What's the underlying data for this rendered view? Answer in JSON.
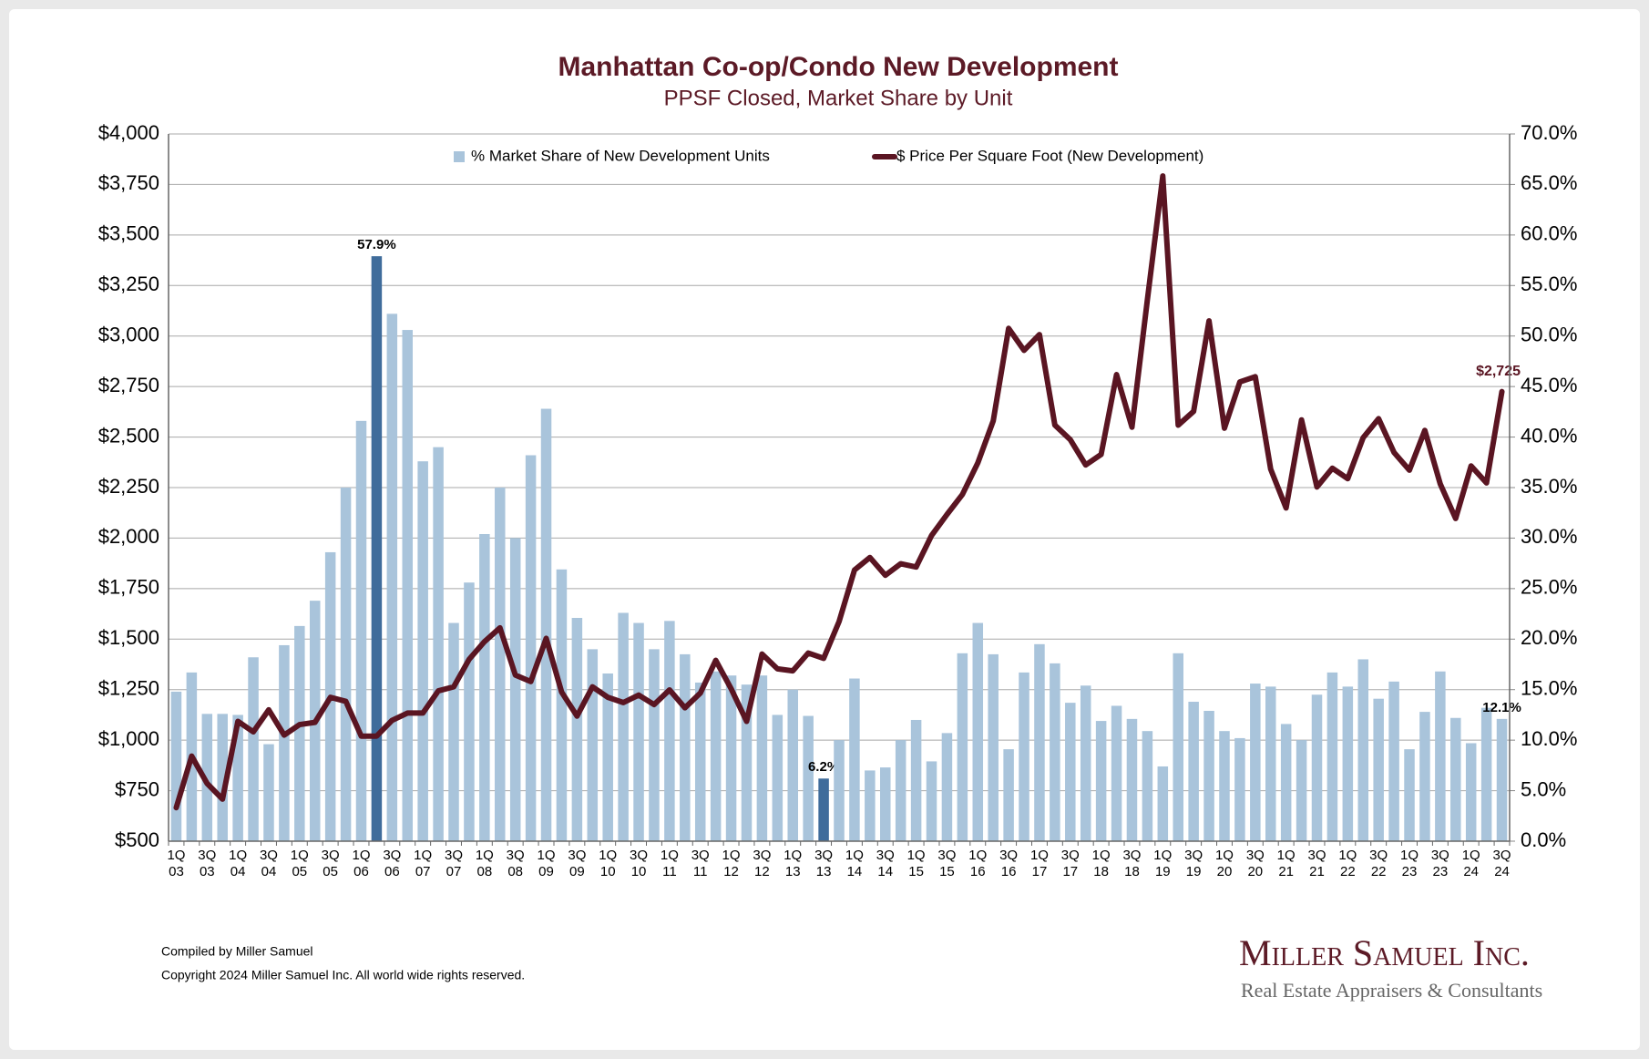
{
  "chart_data": {
    "type": "combo",
    "title": "Manhattan Co-op/Condo New Development",
    "subtitle": "PPSF Closed, Market Share by Unit",
    "categories": [
      "1Q 03",
      null,
      "3Q 03",
      null,
      "1Q 04",
      null,
      "3Q 04",
      null,
      "1Q 05",
      null,
      "3Q 05",
      null,
      "1Q 06",
      null,
      "3Q 06",
      null,
      "1Q 07",
      null,
      "3Q 07",
      null,
      "1Q 08",
      null,
      "3Q 08",
      null,
      "1Q 09",
      null,
      "3Q 09",
      null,
      "1Q 10",
      null,
      "3Q 10",
      null,
      "1Q 11",
      null,
      "3Q 11",
      null,
      "1Q 12",
      null,
      "3Q 12",
      null,
      "1Q 13",
      null,
      "3Q 13",
      null,
      "1Q 14",
      null,
      "3Q 14",
      null,
      "1Q 15",
      null,
      "3Q 15",
      null,
      "1Q 16",
      null,
      "3Q 16",
      null,
      "1Q 17",
      null,
      "3Q 17",
      null,
      "1Q 18",
      null,
      "3Q 18",
      null,
      "1Q 19",
      null,
      "3Q 19",
      null,
      "1Q 20",
      null,
      "3Q 20",
      null,
      "1Q 21",
      null,
      "3Q 21",
      null,
      "1Q 22",
      null,
      "3Q 22",
      null,
      "1Q 23",
      null,
      "3Q 23",
      null,
      "1Q 24",
      null,
      "3Q 24"
    ],
    "series": [
      {
        "name": "% Market Share of New Development Units",
        "type": "bar",
        "axis": "y2",
        "color": "#a9c4db",
        "colors": [
          "#a9c4db",
          "#a9c4db",
          "#a9c4db",
          "#a9c4db",
          "#a9c4db",
          "#a9c4db",
          "#a9c4db",
          "#a9c4db",
          "#a9c4db",
          "#a9c4db",
          "#a9c4db",
          "#a9c4db",
          "#a9c4db",
          "#3f6c9b",
          "#a9c4db",
          "#a9c4db",
          "#a9c4db",
          "#a9c4db",
          "#a9c4db",
          "#a9c4db",
          "#a9c4db",
          "#a9c4db",
          "#a9c4db",
          "#a9c4db",
          "#a9c4db",
          "#a9c4db",
          "#a9c4db",
          "#a9c4db",
          "#a9c4db",
          "#a9c4db",
          "#a9c4db",
          "#a9c4db",
          "#a9c4db",
          "#a9c4db",
          "#a9c4db",
          "#a9c4db",
          "#a9c4db",
          "#a9c4db",
          "#a9c4db",
          "#a9c4db",
          "#a9c4db",
          "#a9c4db",
          "#3f6c9b",
          "#a9c4db",
          "#a9c4db",
          "#a9c4db",
          "#a9c4db",
          "#a9c4db",
          "#a9c4db",
          "#a9c4db",
          "#a9c4db",
          "#a9c4db",
          "#a9c4db",
          "#a9c4db",
          "#a9c4db",
          "#a9c4db",
          "#a9c4db",
          "#a9c4db",
          "#a9c4db",
          "#a9c4db",
          "#a9c4db",
          "#a9c4db",
          "#a9c4db",
          "#a9c4db",
          "#a9c4db",
          "#a9c4db",
          "#a9c4db",
          "#a9c4db",
          "#a9c4db",
          "#a9c4db",
          "#a9c4db",
          "#a9c4db",
          "#a9c4db",
          "#a9c4db",
          "#a9c4db",
          "#a9c4db",
          "#a9c4db",
          "#a9c4db",
          "#a9c4db",
          "#a9c4db",
          "#a9c4db",
          "#a9c4db",
          "#a9c4db",
          "#a9c4db",
          "#a9c4db",
          "#a9c4db",
          "#a9c4db"
        ],
        "values": [
          14.8,
          16.7,
          12.6,
          12.6,
          12.5,
          18.2,
          9.6,
          19.4,
          21.3,
          23.8,
          28.6,
          35.0,
          41.6,
          57.9,
          52.2,
          50.6,
          37.6,
          39.0,
          21.6,
          25.6,
          30.4,
          35.0,
          30.0,
          38.2,
          42.8,
          26.9,
          22.1,
          19.0,
          16.6,
          22.6,
          21.6,
          19.0,
          21.8,
          18.5,
          15.7,
          16.8,
          16.4,
          15.5,
          16.4,
          12.5,
          15.0,
          12.4,
          6.2,
          10.0,
          16.1,
          7.0,
          7.3,
          10.0,
          12.0,
          7.9,
          10.7,
          18.6,
          21.6,
          18.5,
          9.1,
          16.7,
          19.5,
          17.6,
          13.7,
          15.4,
          11.9,
          13.4,
          12.1,
          10.9,
          7.4,
          18.6,
          13.8,
          12.9,
          10.9,
          10.2,
          15.6,
          15.3,
          11.6,
          10.0,
          14.5,
          16.7,
          15.3,
          18.0,
          14.1,
          15.8,
          9.1,
          12.8,
          16.8,
          12.2,
          9.7,
          13.2,
          12.1
        ],
        "value_labels": [
          null,
          null,
          null,
          null,
          null,
          null,
          null,
          null,
          null,
          null,
          null,
          null,
          null,
          "57.9%",
          null,
          null,
          null,
          null,
          null,
          null,
          null,
          null,
          null,
          null,
          null,
          null,
          null,
          null,
          null,
          null,
          null,
          null,
          null,
          null,
          null,
          null,
          null,
          null,
          null,
          null,
          null,
          null,
          "6.2%",
          null,
          null,
          null,
          null,
          null,
          null,
          null,
          null,
          null,
          null,
          null,
          null,
          null,
          null,
          null,
          null,
          null,
          null,
          null,
          null,
          null,
          null,
          null,
          null,
          null,
          null,
          null,
          null,
          null,
          null,
          null,
          null,
          null,
          null,
          null,
          null,
          null,
          null,
          null,
          null,
          null,
          null,
          null,
          "12.1%"
        ]
      },
      {
        "name": "$ Price Per Square Foot (New Development)",
        "type": "line",
        "axis": "y",
        "color": "#5a1522",
        "values": [
          666,
          921,
          786,
          708,
          1093,
          1041,
          1150,
          1025,
          1077,
          1088,
          1212,
          1192,
          1020,
          1020,
          1098,
          1134,
          1134,
          1244,
          1264,
          1400,
          1488,
          1556,
          1322,
          1290,
          1504,
          1238,
          1119,
          1264,
          1212,
          1186,
          1223,
          1176,
          1249,
          1160,
          1233,
          1395,
          1254,
          1093,
          1426,
          1353,
          1343,
          1431,
          1405,
          1587,
          1842,
          1904,
          1816,
          1873,
          1857,
          2013,
          2117,
          2216,
          2372,
          2580,
          3038,
          2929,
          3007,
          2559,
          2487,
          2362,
          2414,
          2809,
          2549,
          3179,
          3792,
          2559,
          2627,
          3075,
          2544,
          2773,
          2799,
          2341,
          2149,
          2585,
          2253,
          2346,
          2294,
          2497,
          2591,
          2424,
          2336,
          2533,
          2268,
          2097,
          2357,
          2273,
          2725
        ],
        "value_labels": [
          null,
          null,
          null,
          null,
          null,
          null,
          null,
          null,
          null,
          null,
          null,
          null,
          null,
          null,
          null,
          null,
          null,
          null,
          null,
          null,
          null,
          null,
          null,
          null,
          null,
          null,
          null,
          null,
          null,
          null,
          null,
          null,
          null,
          null,
          null,
          null,
          null,
          null,
          null,
          null,
          null,
          null,
          null,
          null,
          null,
          null,
          null,
          null,
          null,
          null,
          null,
          null,
          null,
          null,
          null,
          null,
          null,
          null,
          null,
          null,
          null,
          null,
          null,
          null,
          null,
          null,
          null,
          null,
          null,
          null,
          null,
          null,
          null,
          null,
          null,
          null,
          null,
          null,
          null,
          null,
          null,
          null,
          null,
          null,
          null,
          null,
          "$2,725"
        ]
      }
    ],
    "ylim": [
      500,
      4000
    ],
    "yticks": [
      {
        "value": 500,
        "label": "$500"
      },
      {
        "value": 750,
        "label": "$750"
      },
      {
        "value": 1000,
        "label": "$1,000"
      },
      {
        "value": 1250,
        "label": "$1,250"
      },
      {
        "value": 1500,
        "label": "$1,500"
      },
      {
        "value": 1750,
        "label": "$1,750"
      },
      {
        "value": 2000,
        "label": "$2,000"
      },
      {
        "value": 2250,
        "label": "$2,250"
      },
      {
        "value": 2500,
        "label": "$2,500"
      },
      {
        "value": 2750,
        "label": "$2,750"
      },
      {
        "value": 3000,
        "label": "$3,000"
      },
      {
        "value": 3250,
        "label": "$3,250"
      },
      {
        "value": 3500,
        "label": "$3,500"
      },
      {
        "value": 3750,
        "label": "$3,750"
      },
      {
        "value": 4000,
        "label": "$4,000"
      }
    ],
    "y2lim": [
      0,
      70
    ],
    "y2ticks": [
      {
        "value": 0,
        "label": "0.0%"
      },
      {
        "value": 5,
        "label": "5.0%"
      },
      {
        "value": 10,
        "label": "10.0%"
      },
      {
        "value": 15,
        "label": "15.0%"
      },
      {
        "value": 20,
        "label": "20.0%"
      },
      {
        "value": 25,
        "label": "25.0%"
      },
      {
        "value": 30,
        "label": "30.0%"
      },
      {
        "value": 35,
        "label": "35.0%"
      },
      {
        "value": 40,
        "label": "40.0%"
      },
      {
        "value": 45,
        "label": "45.0%"
      },
      {
        "value": 50,
        "label": "50.0%"
      },
      {
        "value": 55,
        "label": "55.0%"
      },
      {
        "value": 60,
        "label": "60.0%"
      },
      {
        "value": 65,
        "label": "65.0%"
      },
      {
        "value": 70,
        "label": "70.0%"
      }
    ],
    "grid": true,
    "legend": "top",
    "footer": [
      "Compiled by Miller Samuel",
      "Copyright 2024 Miller Samuel Inc.  All world wide rights reserved."
    ],
    "logo": {
      "name": "Miller Samuel Inc.",
      "tagline": "Real Estate Appraisers & Consultants"
    }
  }
}
